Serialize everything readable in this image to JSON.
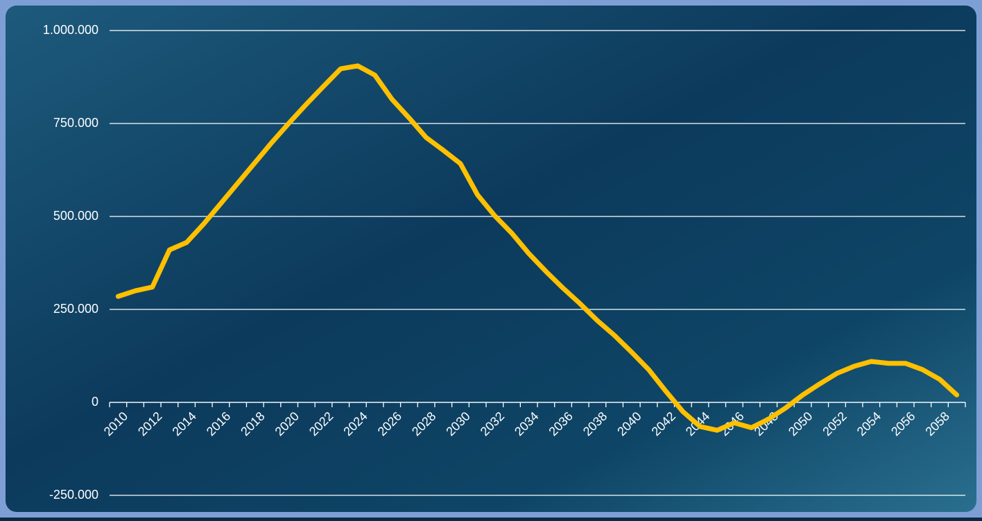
{
  "chart_data": {
    "type": "line",
    "categories": [
      "2010",
      null,
      "2012",
      null,
      "2014",
      null,
      "2016",
      null,
      "2018",
      null,
      "2020",
      null,
      "2022",
      null,
      "2024",
      null,
      "2026",
      null,
      "2028",
      null,
      "2030",
      null,
      "2032",
      null,
      "2034",
      null,
      "2036",
      null,
      "2038",
      null,
      "2040",
      null,
      "2042",
      null,
      "2044",
      null,
      "2046",
      null,
      "2048",
      null,
      "2050",
      null,
      "2052",
      null,
      "2054",
      null,
      "2056",
      null,
      "2058",
      null
    ],
    "values": [
      285000,
      300000,
      310000,
      410000,
      430000,
      480000,
      535000,
      590000,
      645000,
      700000,
      752000,
      802000,
      850000,
      897000,
      905000,
      880000,
      815000,
      765000,
      712000,
      678000,
      642000,
      558000,
      502000,
      455000,
      400000,
      352000,
      307000,
      265000,
      220000,
      180000,
      135000,
      88000,
      30000,
      -25000,
      -65000,
      -75000,
      -55000,
      -68000,
      -45000,
      -15000,
      20000,
      50000,
      78000,
      97000,
      110000,
      105000,
      105000,
      88000,
      62000,
      20000
    ],
    "color": "#ffc000",
    "ylim": [
      -250000,
      1000000
    ],
    "yticks": [
      {
        "value": -250000,
        "label": "-250.000"
      },
      0,
      {
        "value": 250000,
        "label": "250.000"
      },
      {
        "value": 500000,
        "label": "500.000"
      },
      {
        "value": 750000,
        "label": "750.000"
      },
      {
        "value": 1000000,
        "label": "1.000.000"
      }
    ],
    "grid": true
  }
}
